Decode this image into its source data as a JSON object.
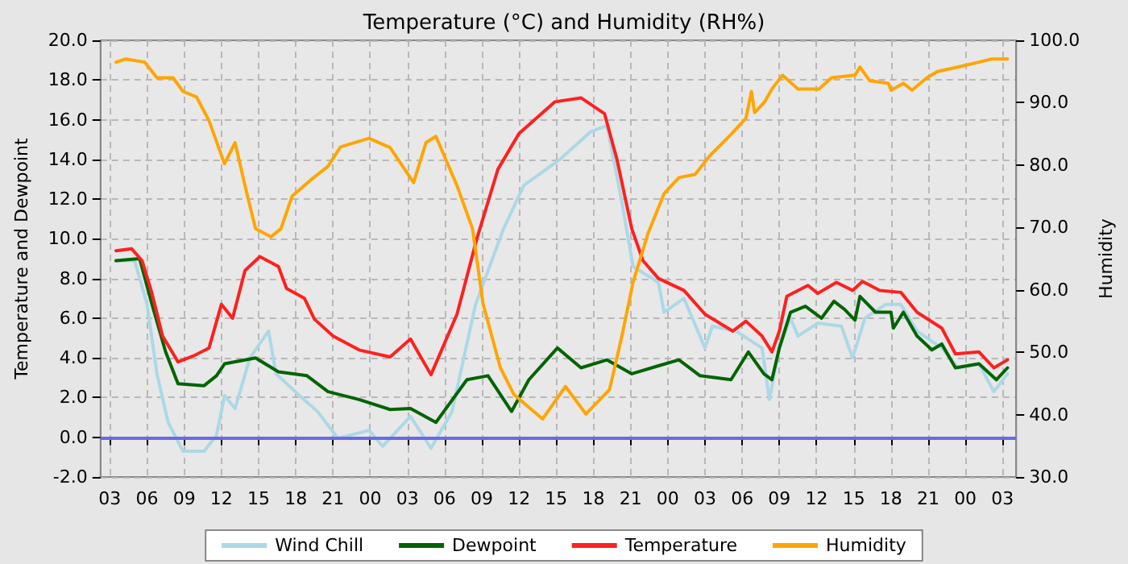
{
  "chart_data": {
    "type": "line",
    "title": "Temperature (°C) and Humidity (RH%)",
    "ylabel": "Temperature and Dewpoint",
    "y2label": "Humidity",
    "xlim": [
      2.25,
      76.1
    ],
    "xticks": [
      {
        "value": 3,
        "label": "03"
      },
      {
        "value": 6,
        "label": "06"
      },
      {
        "value": 9,
        "label": "09"
      },
      {
        "value": 12,
        "label": "12"
      },
      {
        "value": 15,
        "label": "15"
      },
      {
        "value": 18,
        "label": "18"
      },
      {
        "value": 21,
        "label": "21"
      },
      {
        "value": 24,
        "label": "00"
      },
      {
        "value": 27,
        "label": "03"
      },
      {
        "value": 30,
        "label": "06"
      },
      {
        "value": 33,
        "label": "09"
      },
      {
        "value": 36,
        "label": "12"
      },
      {
        "value": 39,
        "label": "15"
      },
      {
        "value": 42,
        "label": "18"
      },
      {
        "value": 45,
        "label": "21"
      },
      {
        "value": 48,
        "label": "00"
      },
      {
        "value": 51,
        "label": "03"
      },
      {
        "value": 54,
        "label": "06"
      },
      {
        "value": 57,
        "label": "09"
      },
      {
        "value": 60,
        "label": "12"
      },
      {
        "value": 63,
        "label": "15"
      },
      {
        "value": 66,
        "label": "18"
      },
      {
        "value": 69,
        "label": "21"
      },
      {
        "value": 72,
        "label": "00"
      },
      {
        "value": 75,
        "label": "03"
      }
    ],
    "ylim": [
      -2,
      20
    ],
    "yticks": [
      {
        "value": -2,
        "label": "-2.0"
      },
      {
        "value": 0,
        "label": "0.0"
      },
      {
        "value": 2,
        "label": "2.0"
      },
      {
        "value": 4,
        "label": "4.0"
      },
      {
        "value": 6,
        "label": "6.0"
      },
      {
        "value": 8,
        "label": "8.0"
      },
      {
        "value": 10,
        "label": "10.0"
      },
      {
        "value": 12,
        "label": "12.0"
      },
      {
        "value": 14,
        "label": "14.0"
      },
      {
        "value": 16,
        "label": "16.0"
      },
      {
        "value": 18,
        "label": "18.0"
      },
      {
        "value": 20,
        "label": "20.0"
      }
    ],
    "y2lim": [
      30,
      100
    ],
    "y2ticks": [
      {
        "value": 30,
        "label": "30.0"
      },
      {
        "value": 40,
        "label": "40.0"
      },
      {
        "value": 50,
        "label": "50.0"
      },
      {
        "value": 60,
        "label": "60.0"
      },
      {
        "value": 70,
        "label": "70.0"
      },
      {
        "value": 80,
        "label": "80.0"
      },
      {
        "value": 90,
        "label": "90.0"
      },
      {
        "value": 100,
        "label": "100.0"
      }
    ],
    "grid": true,
    "legend": "bottom",
    "marker": "none",
    "ref_lines": [
      {
        "axis": "y",
        "value": 0,
        "color": "#6a6ae6"
      }
    ],
    "series": [
      {
        "name": "Wind Chill",
        "color": "#add8e6",
        "x": [
          3.5,
          5,
          6,
          6.8,
          7.7,
          8.9,
          10.6,
          11.6,
          12.25,
          13.1,
          14.3,
          15.8,
          16.4,
          18.3,
          19.75,
          21.4,
          23.9,
          25,
          27.25,
          28.9,
          30.6,
          32.5,
          34.75,
          36.4,
          39.3,
          41.8,
          43.1,
          44.3,
          45.2,
          47.25,
          47.7,
          49.3,
          51,
          51.6,
          53.5,
          55.6,
          56.2,
          57,
          57.9,
          58.5,
          60.1,
          62,
          62.9,
          63.9,
          65.6,
          66.8,
          68.1,
          70.1,
          71.4,
          73.1,
          74.3,
          75.4
        ],
        "values": [
          8.9,
          8.9,
          6.7,
          3.2,
          0.75,
          -0.7,
          -0.7,
          0.1,
          2.1,
          1.45,
          4.0,
          5.35,
          3.2,
          2.1,
          1.3,
          -0.05,
          0.35,
          -0.45,
          1.05,
          -0.55,
          1.3,
          6.7,
          10.5,
          12.7,
          14.0,
          15.4,
          15.7,
          11.85,
          8.6,
          7.8,
          6.3,
          7.0,
          4.5,
          5.6,
          5.35,
          4.5,
          1.9,
          4.5,
          6.0,
          5.1,
          5.75,
          5.6,
          4.0,
          6.0,
          6.7,
          6.7,
          5.35,
          4.5,
          3.5,
          3.7,
          2.3,
          3.2
        ]
      },
      {
        "name": "Dewpoint",
        "color": "#006400",
        "x": [
          3.5,
          5.4,
          6.4,
          7.5,
          8.5,
          10.6,
          11.6,
          12.25,
          14.75,
          16.6,
          18.9,
          20.6,
          23.1,
          25.6,
          27.25,
          29.3,
          31.8,
          33.5,
          35.4,
          36.8,
          39.1,
          41,
          43.1,
          45.1,
          47.25,
          48.9,
          50.6,
          53.1,
          54.5,
          55.75,
          56.4,
          57,
          57.9,
          59.1,
          60.4,
          61.4,
          62.25,
          63.1,
          63.5,
          64.75,
          66,
          66.2,
          67,
          68.1,
          69.3,
          70.1,
          71.2,
          73.1,
          74.5,
          75.4
        ],
        "values": [
          8.9,
          9.0,
          6.7,
          4.3,
          2.7,
          2.6,
          3.1,
          3.7,
          4.0,
          3.3,
          3.1,
          2.3,
          1.9,
          1.4,
          1.45,
          0.75,
          2.9,
          3.1,
          1.3,
          2.9,
          4.5,
          3.5,
          3.9,
          3.2,
          3.6,
          3.9,
          3.1,
          2.9,
          4.3,
          3.2,
          2.9,
          4.5,
          6.3,
          6.6,
          6.0,
          6.85,
          6.45,
          5.9,
          7.1,
          6.3,
          6.3,
          5.5,
          6.3,
          5.1,
          4.4,
          4.7,
          3.5,
          3.7,
          2.9,
          3.5
        ]
      },
      {
        "name": "Temperature",
        "color": "#ff2020",
        "x": [
          3.5,
          4.75,
          5.6,
          6.4,
          7.25,
          8.5,
          9.75,
          11,
          12,
          12.9,
          13.9,
          15.1,
          16.6,
          17.25,
          18.7,
          19.5,
          21,
          23.1,
          25.6,
          27.25,
          28.9,
          31,
          32.6,
          34.3,
          36,
          38.9,
          41,
          42.9,
          43.9,
          45.1,
          46,
          47.25,
          49.3,
          51,
          53.25,
          54.3,
          55.6,
          56.4,
          57,
          57.6,
          59.3,
          60.1,
          61.6,
          62.9,
          63.7,
          65.1,
          66.8,
          68.1,
          70.1,
          71.2,
          73.1,
          74.3,
          75.4
        ],
        "values": [
          9.4,
          9.5,
          8.9,
          7.25,
          5.1,
          3.8,
          4.1,
          4.5,
          6.7,
          6.0,
          8.4,
          9.1,
          8.6,
          7.5,
          7.0,
          5.95,
          5.1,
          4.4,
          4.05,
          4.95,
          3.15,
          6.2,
          10.0,
          13.5,
          15.3,
          16.9,
          17.1,
          16.3,
          14.0,
          10.5,
          8.9,
          8.0,
          7.4,
          6.2,
          5.35,
          5.85,
          5.1,
          4.3,
          5.35,
          7.1,
          7.65,
          7.25,
          7.8,
          7.4,
          7.85,
          7.4,
          7.3,
          6.3,
          5.5,
          4.2,
          4.3,
          3.5,
          3.9
        ]
      },
      {
        "name": "Humidity",
        "color": "#ffa500",
        "axis": "y2",
        "x": [
          3.5,
          4.3,
          5.8,
          6.8,
          8.1,
          8.9,
          10,
          11,
          12.25,
          13.1,
          13.9,
          14.75,
          16,
          16.8,
          17.7,
          19.2,
          20.6,
          21.6,
          23.9,
          25.6,
          27.5,
          28.5,
          29.3,
          31,
          32.25,
          33.1,
          34.5,
          35.6,
          37.9,
          39.75,
          41.4,
          43.3,
          44.3,
          45.2,
          46.4,
          47.7,
          48.9,
          50.2,
          51.4,
          53.1,
          54.3,
          54.75,
          55,
          55.8,
          56.4,
          57.25,
          58.5,
          60.2,
          61.2,
          63.1,
          63.5,
          64.3,
          65.8,
          66,
          67,
          67.7,
          68.9,
          69.75,
          71.4,
          73.1,
          74.1,
          75.4
        ],
        "values": [
          96.5,
          97.0,
          96.5,
          94.0,
          94.0,
          91.8,
          90.9,
          87.1,
          80.2,
          83.6,
          76.7,
          69.8,
          68.5,
          69.8,
          75.0,
          77.6,
          79.8,
          82.9,
          84.3,
          82.8,
          77.2,
          83.6,
          84.6,
          76.7,
          69.8,
          57.8,
          47.5,
          43.2,
          39.3,
          44.5,
          40.1,
          44.0,
          52.6,
          61.2,
          69.0,
          75.4,
          78.0,
          78.5,
          81.5,
          84.9,
          87.5,
          91.8,
          88.4,
          90.1,
          92.2,
          94.4,
          92.2,
          92.2,
          94.0,
          94.4,
          95.7,
          93.5,
          93.1,
          92.0,
          93.1,
          92.0,
          94.0,
          95.0,
          95.7,
          96.5,
          97.0,
          97.0
        ]
      }
    ]
  }
}
